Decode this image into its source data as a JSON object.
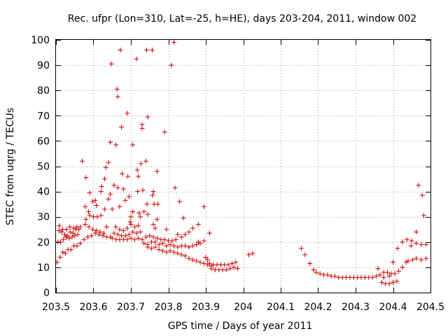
{
  "chart_data": {
    "type": "scatter",
    "title": "Rec. ufpr (Lon=310, Lat=-25, h=HE), days 203-204, 2011, window 002",
    "xlabel": "GPS time / Days of year 2011",
    "ylabel": "STEC from uqrg / TECUs",
    "xlim": [
      203.5,
      204.5
    ],
    "ylim": [
      0,
      100
    ],
    "xticks": [
      203.5,
      203.6,
      203.7,
      203.8,
      203.9,
      204.0,
      204.1,
      204.2,
      204.3,
      204.4,
      204.5
    ],
    "xtick_labels": [
      "203.5",
      "203.6",
      "203.7",
      "203.8",
      "203.9",
      "204",
      "204.1",
      "204.2",
      "204.3",
      "204.4",
      "204.5"
    ],
    "yticks": [
      0,
      10,
      20,
      30,
      40,
      50,
      60,
      70,
      80,
      90,
      100
    ],
    "ytick_labels": [
      "0",
      "10",
      "20",
      "30",
      "40",
      "50",
      "60",
      "70",
      "80",
      "90",
      "100"
    ],
    "grid": true,
    "marker": "+",
    "color": "#cc0000",
    "series": [
      {
        "name": "STEC",
        "points": [
          [
            203.503,
            12
          ],
          [
            203.511,
            14
          ],
          [
            203.518,
            16
          ],
          [
            203.525,
            15.5
          ],
          [
            203.532,
            17
          ],
          [
            203.54,
            17
          ],
          [
            203.548,
            18.5
          ],
          [
            203.556,
            18.5
          ],
          [
            203.565,
            19.5
          ],
          [
            203.505,
            20
          ],
          [
            203.512,
            20
          ],
          [
            203.52,
            21
          ],
          [
            203.527,
            22
          ],
          [
            203.535,
            21.5
          ],
          [
            203.543,
            22
          ],
          [
            203.55,
            22.5
          ],
          [
            203.558,
            23
          ],
          [
            203.508,
            24.5
          ],
          [
            203.515,
            24
          ],
          [
            203.523,
            23
          ],
          [
            203.53,
            22.5
          ],
          [
            203.538,
            24
          ],
          [
            203.546,
            23.5
          ],
          [
            203.553,
            25
          ],
          [
            203.561,
            25
          ],
          [
            203.509,
            26.5
          ],
          [
            203.518,
            25
          ],
          [
            203.528,
            25
          ],
          [
            203.537,
            26
          ],
          [
            203.547,
            25.5
          ],
          [
            203.556,
            26
          ],
          [
            203.565,
            26
          ],
          [
            203.57,
            52
          ],
          [
            203.58,
            45.5
          ],
          [
            203.578,
            34
          ],
          [
            203.587,
            32
          ],
          [
            203.59,
            39.5
          ],
          [
            203.598,
            36
          ],
          [
            203.605,
            36.5
          ],
          [
            203.608,
            34.5
          ],
          [
            203.575,
            21
          ],
          [
            203.585,
            22
          ],
          [
            203.595,
            22.5
          ],
          [
            203.605,
            23.5
          ],
          [
            203.615,
            23
          ],
          [
            203.625,
            22.5
          ],
          [
            203.635,
            22
          ],
          [
            203.645,
            22
          ],
          [
            203.578,
            27
          ],
          [
            203.588,
            26
          ],
          [
            203.598,
            25
          ],
          [
            203.608,
            24.5
          ],
          [
            203.618,
            24
          ],
          [
            203.628,
            23.5
          ],
          [
            203.58,
            29
          ],
          [
            203.59,
            30.5
          ],
          [
            203.6,
            30
          ],
          [
            203.61,
            30
          ],
          [
            203.62,
            30.5
          ],
          [
            203.62,
            40
          ],
          [
            203.622,
            42
          ],
          [
            203.63,
            45
          ],
          [
            203.633,
            49.5
          ],
          [
            203.64,
            51.5
          ],
          [
            203.645,
            59.5
          ],
          [
            203.648,
            90.5
          ],
          [
            203.655,
            42.5
          ],
          [
            203.64,
            37
          ],
          [
            203.645,
            39
          ],
          [
            203.65,
            33
          ],
          [
            203.63,
            33
          ],
          [
            203.635,
            26
          ],
          [
            203.66,
            58.5
          ],
          [
            203.663,
            80.5
          ],
          [
            203.665,
            77.5
          ],
          [
            203.665,
            41.5
          ],
          [
            203.67,
            34
          ],
          [
            203.672,
            96
          ],
          [
            203.675,
            65.5
          ],
          [
            203.677,
            47
          ],
          [
            203.68,
            41
          ],
          [
            203.65,
            21.5
          ],
          [
            203.66,
            21
          ],
          [
            203.67,
            21
          ],
          [
            203.68,
            21
          ],
          [
            203.69,
            21
          ],
          [
            203.7,
            21.5
          ],
          [
            203.71,
            21
          ],
          [
            203.72,
            21.5
          ],
          [
            203.73,
            21
          ],
          [
            203.655,
            23.5
          ],
          [
            203.665,
            23
          ],
          [
            203.675,
            22.5
          ],
          [
            203.685,
            22.5
          ],
          [
            203.695,
            23
          ],
          [
            203.705,
            24
          ],
          [
            203.715,
            23.5
          ],
          [
            203.725,
            24
          ],
          [
            203.66,
            26
          ],
          [
            203.67,
            25
          ],
          [
            203.68,
            24.5
          ],
          [
            203.69,
            25.5
          ],
          [
            203.7,
            27
          ],
          [
            203.71,
            26
          ],
          [
            203.72,
            26.5
          ],
          [
            203.685,
            36.5
          ],
          [
            203.69,
            71
          ],
          [
            203.692,
            46
          ],
          [
            203.695,
            38
          ],
          [
            203.698,
            28
          ],
          [
            203.7,
            30
          ],
          [
            203.705,
            58.5
          ],
          [
            203.705,
            32
          ],
          [
            203.715,
            92.5
          ],
          [
            203.717,
            48.5
          ],
          [
            203.72,
            46
          ],
          [
            203.718,
            40
          ],
          [
            203.722,
            31.5
          ],
          [
            203.725,
            30
          ],
          [
            203.727,
            51
          ],
          [
            203.73,
            66.5
          ],
          [
            203.73,
            65
          ],
          [
            203.732,
            40.5
          ],
          [
            203.735,
            32
          ],
          [
            203.74,
            52
          ],
          [
            203.742,
            96
          ],
          [
            203.745,
            69.5
          ],
          [
            203.743,
            35
          ],
          [
            203.745,
            31
          ],
          [
            203.757,
            96
          ],
          [
            203.76,
            40
          ],
          [
            203.758,
            38.5
          ],
          [
            203.762,
            35
          ],
          [
            203.77,
            48
          ],
          [
            203.772,
            35
          ],
          [
            203.76,
            27
          ],
          [
            203.765,
            25.5
          ],
          [
            203.77,
            29
          ],
          [
            203.735,
            19.5
          ],
          [
            203.745,
            19
          ],
          [
            203.755,
            20
          ],
          [
            203.765,
            20
          ],
          [
            203.775,
            19
          ],
          [
            203.785,
            19.5
          ],
          [
            203.795,
            18.5
          ],
          [
            203.805,
            19
          ],
          [
            203.815,
            18.5
          ],
          [
            203.825,
            18
          ],
          [
            203.835,
            18.5
          ],
          [
            203.845,
            18.5
          ],
          [
            203.855,
            18
          ],
          [
            203.865,
            18.5
          ],
          [
            203.875,
            19
          ],
          [
            203.885,
            19.5
          ],
          [
            203.74,
            22
          ],
          [
            203.75,
            22.5
          ],
          [
            203.76,
            22
          ],
          [
            203.77,
            21.5
          ],
          [
            203.78,
            21
          ],
          [
            203.79,
            21
          ],
          [
            203.8,
            20.5
          ],
          [
            203.81,
            20.5
          ],
          [
            203.82,
            21
          ],
          [
            203.745,
            18
          ],
          [
            203.755,
            17.5
          ],
          [
            203.765,
            18
          ],
          [
            203.775,
            17
          ],
          [
            203.785,
            16.5
          ],
          [
            203.795,
            16
          ],
          [
            203.805,
            16.5
          ],
          [
            203.815,
            16
          ],
          [
            203.825,
            15.5
          ],
          [
            203.835,
            15
          ],
          [
            203.845,
            14.5
          ],
          [
            203.855,
            13.5
          ],
          [
            203.865,
            13
          ],
          [
            203.875,
            12.5
          ],
          [
            203.885,
            12
          ],
          [
            203.895,
            11.5
          ],
          [
            203.905,
            11
          ],
          [
            203.915,
            10.5
          ],
          [
            203.79,
            63.5
          ],
          [
            203.795,
            25
          ],
          [
            203.808,
            90
          ],
          [
            203.815,
            99
          ],
          [
            203.818,
            41.5
          ],
          [
            203.83,
            36
          ],
          [
            203.84,
            29.5
          ],
          [
            203.825,
            23
          ],
          [
            203.835,
            22
          ],
          [
            203.845,
            23
          ],
          [
            203.855,
            24
          ],
          [
            203.865,
            25.5
          ],
          [
            203.88,
            27
          ],
          [
            203.895,
            34
          ],
          [
            203.91,
            23.5
          ],
          [
            203.88,
            20
          ],
          [
            203.895,
            20.5
          ],
          [
            203.9,
            14
          ],
          [
            203.905,
            13
          ],
          [
            203.91,
            11.5
          ],
          [
            203.915,
            9.5
          ],
          [
            203.925,
            9
          ],
          [
            203.935,
            9
          ],
          [
            203.945,
            9
          ],
          [
            203.955,
            9
          ],
          [
            203.965,
            9.5
          ],
          [
            203.975,
            10
          ],
          [
            203.985,
            9.5
          ],
          [
            203.92,
            11
          ],
          [
            203.93,
            11
          ],
          [
            203.94,
            11
          ],
          [
            203.95,
            11
          ],
          [
            203.96,
            11
          ],
          [
            203.97,
            11.5
          ],
          [
            203.98,
            12
          ],
          [
            204.015,
            15
          ],
          [
            204.025,
            15.5
          ],
          [
            204.155,
            17.5
          ],
          [
            204.165,
            15
          ],
          [
            204.178,
            11.5
          ],
          [
            204.188,
            9
          ],
          [
            204.195,
            8
          ],
          [
            204.205,
            7.5
          ],
          [
            204.215,
            7
          ],
          [
            204.225,
            7
          ],
          [
            204.235,
            6.5
          ],
          [
            204.245,
            6.5
          ],
          [
            204.255,
            6
          ],
          [
            204.265,
            6
          ],
          [
            204.275,
            6
          ],
          [
            204.285,
            6
          ],
          [
            204.295,
            6
          ],
          [
            204.305,
            6
          ],
          [
            204.315,
            6
          ],
          [
            204.325,
            6
          ],
          [
            204.335,
            6
          ],
          [
            204.345,
            6
          ],
          [
            204.355,
            6.5
          ],
          [
            204.365,
            7
          ],
          [
            204.375,
            8
          ],
          [
            204.385,
            8
          ],
          [
            204.395,
            7.5
          ],
          [
            204.405,
            7.5
          ],
          [
            204.415,
            8.5
          ],
          [
            204.425,
            10
          ],
          [
            204.435,
            12
          ],
          [
            204.37,
            4
          ],
          [
            204.38,
            3.5
          ],
          [
            204.39,
            3.5
          ],
          [
            204.4,
            4
          ],
          [
            204.41,
            4.5
          ],
          [
            204.36,
            9.5
          ],
          [
            204.375,
            6
          ],
          [
            204.39,
            6.5
          ],
          [
            204.4,
            12
          ],
          [
            204.412,
            17.5
          ],
          [
            204.425,
            20
          ],
          [
            204.437,
            21
          ],
          [
            204.45,
            20.5
          ],
          [
            204.462,
            19.5
          ],
          [
            204.475,
            19
          ],
          [
            204.44,
            12.5
          ],
          [
            204.452,
            13
          ],
          [
            204.462,
            13.5
          ],
          [
            204.475,
            13
          ],
          [
            204.488,
            13.5
          ],
          [
            204.448,
            18.5
          ],
          [
            204.462,
            24
          ],
          [
            204.468,
            42.5
          ],
          [
            204.478,
            38.5
          ],
          [
            204.482,
            30.5
          ],
          [
            204.488,
            19
          ]
        ]
      }
    ]
  }
}
